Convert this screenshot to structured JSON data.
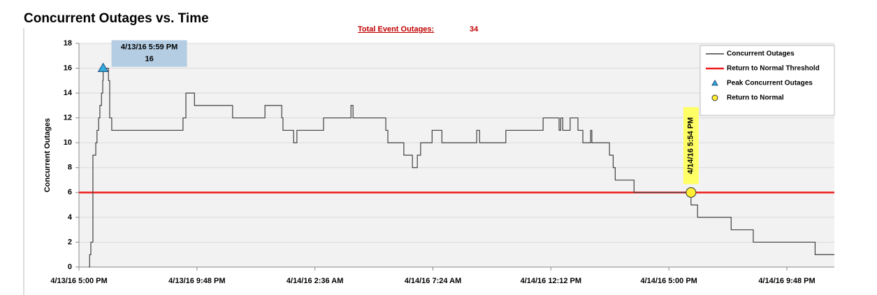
{
  "chart_data": {
    "type": "step-line",
    "title": "Concurrent Outages vs. Time",
    "total_label": "Total Event Outages:",
    "total_value": 34,
    "ylabel": "Concurrent Outages",
    "xlim": [
      "2016-04-13T17:00",
      "2016-04-14T23:44"
    ],
    "xticks": [
      {
        "value": "2016-04-13T17:00",
        "label": "4/13/16 5:00 PM"
      },
      {
        "value": "2016-04-13T21:48",
        "label": "4/13/16 9:48 PM"
      },
      {
        "value": "2016-04-14T02:36",
        "label": "4/14/16 2:36 AM"
      },
      {
        "value": "2016-04-14T07:24",
        "label": "4/14/16 7:24 AM"
      },
      {
        "value": "2016-04-14T12:12",
        "label": "4/14/16 12:12 PM"
      },
      {
        "value": "2016-04-14T17:00",
        "label": "4/14/16 5:00 PM"
      },
      {
        "value": "2016-04-14T21:48",
        "label": "4/14/16 9:48 PM"
      }
    ],
    "ylim": [
      0,
      18
    ],
    "yticks": [
      0,
      2,
      4,
      6,
      8,
      10,
      12,
      14,
      16,
      18
    ],
    "grid": true,
    "legend": "top-right",
    "series": [
      {
        "name": "Concurrent Outages",
        "color": "#404040",
        "x": [
          "2016-04-13T17:24",
          "2016-04-13T17:26",
          "2016-04-13T17:29",
          "2016-04-13T17:34",
          "2016-04-13T17:41",
          "2016-04-13T17:44",
          "2016-04-13T17:48",
          "2016-04-13T17:51",
          "2016-04-13T17:55",
          "2016-04-13T17:58",
          "2016-04-13T17:59",
          "2016-04-13T18:12",
          "2016-04-13T18:15",
          "2016-04-13T18:20",
          "2016-04-13T21:14",
          "2016-04-13T21:21",
          "2016-04-13T21:42",
          "2016-04-13T23:15",
          "2016-04-14T00:34",
          "2016-04-14T01:15",
          "2016-04-14T01:18",
          "2016-04-14T01:44",
          "2016-04-14T01:52",
          "2016-04-14T02:57",
          "2016-04-14T04:04",
          "2016-04-14T04:09",
          "2016-04-14T05:29",
          "2016-04-14T05:34",
          "2016-04-14T06:13",
          "2016-04-14T06:34",
          "2016-04-14T06:46",
          "2016-04-14T06:54",
          "2016-04-14T07:22",
          "2016-04-14T07:46",
          "2016-04-14T09:11",
          "2016-04-14T09:18",
          "2016-04-14T10:22",
          "2016-04-14T11:53",
          "2016-04-14T12:32",
          "2016-04-14T12:36",
          "2016-04-14T12:41",
          "2016-04-14T12:59",
          "2016-04-14T13:18",
          "2016-04-14T13:30",
          "2016-04-14T13:49",
          "2016-04-14T13:52",
          "2016-04-14T14:35",
          "2016-04-14T14:44",
          "2016-04-14T14:49",
          "2016-04-14T15:35",
          "2016-04-14T17:54",
          "2016-04-14T18:10",
          "2016-04-14T19:32",
          "2016-04-14T20:26",
          "2016-04-14T22:57",
          "2016-04-14T23:44"
        ],
        "values": [
          0,
          1,
          2,
          9,
          10,
          11,
          12,
          13,
          14,
          15,
          16,
          15,
          12,
          11,
          12,
          14,
          13,
          12,
          13,
          12,
          11,
          10,
          11,
          12,
          13,
          12,
          11,
          10,
          9,
          8,
          9,
          10,
          11,
          10,
          11,
          10,
          11,
          12,
          11,
          12,
          11,
          12,
          11,
          10,
          11,
          10,
          9,
          8,
          7,
          6,
          5,
          4,
          3,
          2,
          1,
          1
        ]
      }
    ],
    "threshold": {
      "name": "Return to Normal Threshold",
      "value": 6,
      "color": "#ee1c1c"
    },
    "peak": {
      "name": "Peak Concurrent Outages",
      "x": "2016-04-13T17:59",
      "value": 16,
      "label": "4/13/16 5:59 PM",
      "color": "#33aadd"
    },
    "return_point": {
      "name": "Return to Normal",
      "x": "2016-04-14T17:54",
      "value": 6,
      "label": "4/14/16 5:54 PM",
      "color": "#ffee33"
    }
  }
}
